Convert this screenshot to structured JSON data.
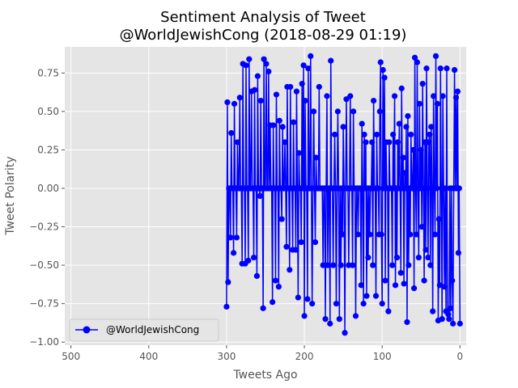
{
  "chart_data": {
    "type": "line",
    "title_line1": "Sentiment Analysis of Tweet",
    "title_line2": "@WorldJewishCong (2018-08-29 01:19)",
    "xlabel": "Tweets Ago",
    "ylabel": "Tweet Polarity",
    "xlim": [
      508,
      -8
    ],
    "ylim": [
      -1.02,
      0.92
    ],
    "x_ticks": [
      500,
      400,
      300,
      200,
      100,
      0
    ],
    "y_ticks": [
      -1.0,
      -0.75,
      -0.5,
      -0.25,
      0.0,
      0.25,
      0.5,
      0.75
    ],
    "y_tick_labels": [
      "−1.00",
      "−0.75",
      "−0.50",
      "−0.25",
      "0.00",
      "0.25",
      "0.50",
      "0.75"
    ],
    "grid": true,
    "legend_position": "lower-left",
    "series": [
      {
        "name": "@WorldJewishCong",
        "color": "#0000ff",
        "marker": "circle",
        "values": [
          -0.88,
          0.0,
          -0.42,
          0.63,
          0.0,
          0.59,
          0.0,
          0.77,
          0.0,
          -0.88,
          -0.6,
          0.0,
          -0.78,
          0.0,
          -0.85,
          -0.82,
          -0.8,
          0.78,
          -0.8,
          0.0,
          -0.64,
          0.0,
          0.6,
          -0.85,
          0.0,
          0.78,
          -0.63,
          -0.2,
          -0.86,
          0.55,
          0.0,
          0.86,
          -0.3,
          0.0,
          0.6,
          -0.8,
          0.0,
          0.4,
          -0.5,
          0.35,
          0.3,
          -0.45,
          0.0,
          0.78,
          -0.4,
          0.3,
          -0.6,
          0.0,
          0.68,
          -0.25,
          0.25,
          0.0,
          0.55,
          -0.45,
          0.0,
          0.82,
          -0.3,
          0.0,
          0.85,
          -0.65,
          0.25,
          0.0,
          0.0,
          0.35,
          -0.3,
          0.0,
          -0.5,
          0.47,
          -0.87,
          0.4,
          0.0,
          0.1,
          -0.62,
          0.2,
          0.0,
          0.65,
          -0.55,
          0.0,
          0.42,
          0.0,
          0.3,
          -0.45,
          0.0,
          -0.63,
          0.6,
          0.0,
          0.35,
          -0.5,
          0.0,
          0.0,
          0.0,
          0.3,
          -0.8,
          0.0,
          0.0,
          0.3,
          -0.6,
          0.72,
          0.0,
          0.77,
          -0.75,
          -0.3,
          0.82,
          0.5,
          -0.3,
          0.0,
          0.0,
          0.35,
          -0.7,
          0.0,
          0.0,
          0.57,
          -0.5,
          0.3,
          0.0,
          0.0,
          -0.3,
          0.0,
          -0.45,
          0.0,
          -0.7,
          0.3,
          0.0,
          0.35,
          -0.75,
          0.0,
          0.42,
          -0.63,
          0.0,
          0.0,
          0.0,
          -0.3,
          0.0,
          0.0,
          -0.83,
          0.0,
          0.0,
          0.5,
          -0.5,
          0.0,
          0.0,
          0.6,
          0.0,
          -0.5,
          0.0,
          0.0,
          0.58,
          0.0,
          -0.94,
          0.0,
          0.4,
          -0.3,
          0.0,
          -0.5,
          0.0,
          -0.85,
          0.0,
          0.5,
          0.0,
          -0.75,
          0.0,
          0.35,
          0.0,
          -0.5,
          0.0,
          0.0,
          0.83,
          -0.88,
          0.0,
          0.0,
          -0.5,
          0.6,
          0.0,
          -0.85,
          0.0,
          0.0,
          -0.5,
          0.0,
          0.0,
          0.0,
          0.0,
          0.66,
          0.0,
          0.0,
          0.0,
          0.2,
          -0.35,
          0.0,
          0.5,
          0.0,
          -0.75,
          0.0,
          0.86,
          0.0,
          0.0,
          0.78,
          -0.72,
          0.0,
          0.0,
          0.57,
          -0.83,
          0.8,
          0.0,
          0.68,
          -0.35,
          0.0,
          0.0,
          0.23,
          -0.71,
          0.0,
          0.63,
          -0.4,
          0.0,
          0.0,
          0.43,
          -0.4,
          0.0,
          0.0,
          0.66,
          -0.53,
          0.0,
          0.0,
          0.66,
          -0.38,
          0.0,
          0.3,
          0.0,
          0.0,
          0.4,
          -0.2,
          0.0,
          0.0,
          0.44,
          -0.64,
          0.0,
          0.0,
          0.61,
          -0.6,
          0.0,
          0.0,
          0.41,
          -0.74,
          0.0,
          0.0,
          0.41,
          0.0,
          0.76,
          0.0,
          0.0,
          0.81,
          0.0,
          0.0,
          0.84,
          -0.78,
          0.0,
          0.0,
          0.57,
          -0.05,
          0.0,
          0.0,
          0.73,
          -0.57,
          0.0,
          0.0,
          0.64,
          -0.45,
          0.0,
          0.0,
          0.63,
          0.0,
          0.0,
          0.84,
          -0.47,
          0.0,
          0.0,
          0.8,
          -0.49,
          0.0,
          0.0,
          0.81,
          -0.49,
          0.0,
          0.0,
          0.59,
          0.0,
          0.0,
          0.3,
          -0.32,
          0.0,
          0.0,
          0.55,
          -0.42,
          0.0,
          0.0,
          0.36,
          -0.32,
          0.0,
          0.0,
          -0.61,
          0.56,
          -0.77
        ]
      }
    ]
  }
}
